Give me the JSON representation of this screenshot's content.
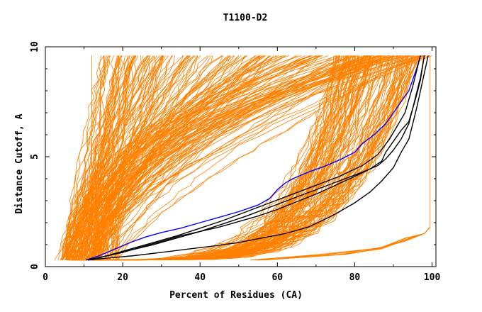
{
  "chart_data": {
    "type": "line",
    "title": "T1100-D2",
    "xlabel": "Percent of Residues (CA)",
    "ylabel": "Distance Cutoff, A",
    "xlim": [
      0,
      101
    ],
    "ylim": [
      0,
      10
    ],
    "xticks": [
      0,
      20,
      40,
      60,
      80,
      100
    ],
    "yticks": [
      0,
      5,
      10
    ],
    "grid": false,
    "colors": {
      "background": "#ffffff",
      "axis": "#000000",
      "orange": "#ff8000",
      "highlight": "#0000ff",
      "black": "#000000"
    },
    "series": [
      {
        "color": "#0000ff",
        "x": [
          10.5,
          14,
          18,
          22,
          26,
          30,
          35,
          40,
          45,
          50,
          55,
          58,
          60,
          62,
          64,
          68,
          72,
          76,
          80,
          82,
          85,
          88,
          90,
          92,
          94,
          95,
          96,
          97
        ],
        "y": [
          0.3,
          0.5,
          0.8,
          1.1,
          1.35,
          1.55,
          1.75,
          2.0,
          2.25,
          2.5,
          2.8,
          3.1,
          3.5,
          3.8,
          4.0,
          4.3,
          4.55,
          4.85,
          5.2,
          5.6,
          6.0,
          6.5,
          7.0,
          7.5,
          8.0,
          8.5,
          9.0,
          9.6
        ]
      },
      {
        "color": "#000000",
        "x": [
          11,
          15,
          20,
          25,
          30,
          35,
          40,
          45,
          50,
          55,
          60,
          65,
          70,
          75,
          80,
          84,
          87,
          88,
          90,
          92,
          94,
          95,
          96,
          97,
          98
        ],
        "y": [
          0.3,
          0.45,
          0.65,
          0.9,
          1.15,
          1.4,
          1.6,
          1.8,
          2.05,
          2.3,
          2.6,
          2.95,
          3.3,
          3.7,
          4.1,
          4.45,
          4.8,
          5.2,
          5.7,
          6.2,
          6.6,
          7.2,
          7.8,
          8.5,
          9.6
        ]
      },
      {
        "color": "#000000",
        "x": [
          11,
          16,
          22,
          28,
          34,
          40,
          46,
          52,
          58,
          64,
          70,
          76,
          82,
          86,
          88,
          90,
          92,
          94,
          95,
          96,
          97,
          98
        ],
        "y": [
          0.3,
          0.5,
          0.75,
          1.0,
          1.3,
          1.6,
          1.95,
          2.3,
          2.7,
          3.1,
          3.5,
          3.9,
          4.3,
          4.6,
          4.9,
          5.3,
          5.8,
          6.5,
          7.2,
          7.9,
          8.6,
          9.6
        ]
      },
      {
        "color": "#000000",
        "x": [
          11,
          17,
          23,
          30,
          37,
          44,
          50,
          56,
          62,
          68,
          74,
          80,
          84,
          87,
          90,
          92,
          94,
          95,
          96,
          97,
          98,
          99
        ],
        "y": [
          0.3,
          0.4,
          0.5,
          0.65,
          0.8,
          0.95,
          1.1,
          1.3,
          1.5,
          1.8,
          2.3,
          2.9,
          3.4,
          3.9,
          4.5,
          5.2,
          5.8,
          6.5,
          7.2,
          8.0,
          8.8,
          9.6
        ]
      },
      {
        "color": "#000000",
        "x": [
          12,
          16,
          22,
          28,
          34,
          40,
          46,
          52,
          58,
          64,
          70,
          76,
          82,
          86,
          89,
          91,
          93,
          94,
          95,
          96,
          97
        ],
        "y": [
          0.3,
          0.5,
          0.8,
          1.1,
          1.4,
          1.75,
          2.1,
          2.5,
          2.9,
          3.3,
          3.7,
          4.1,
          4.6,
          5.1,
          5.8,
          6.4,
          7.0,
          7.6,
          8.2,
          8.9,
          9.6
        ]
      }
    ]
  }
}
